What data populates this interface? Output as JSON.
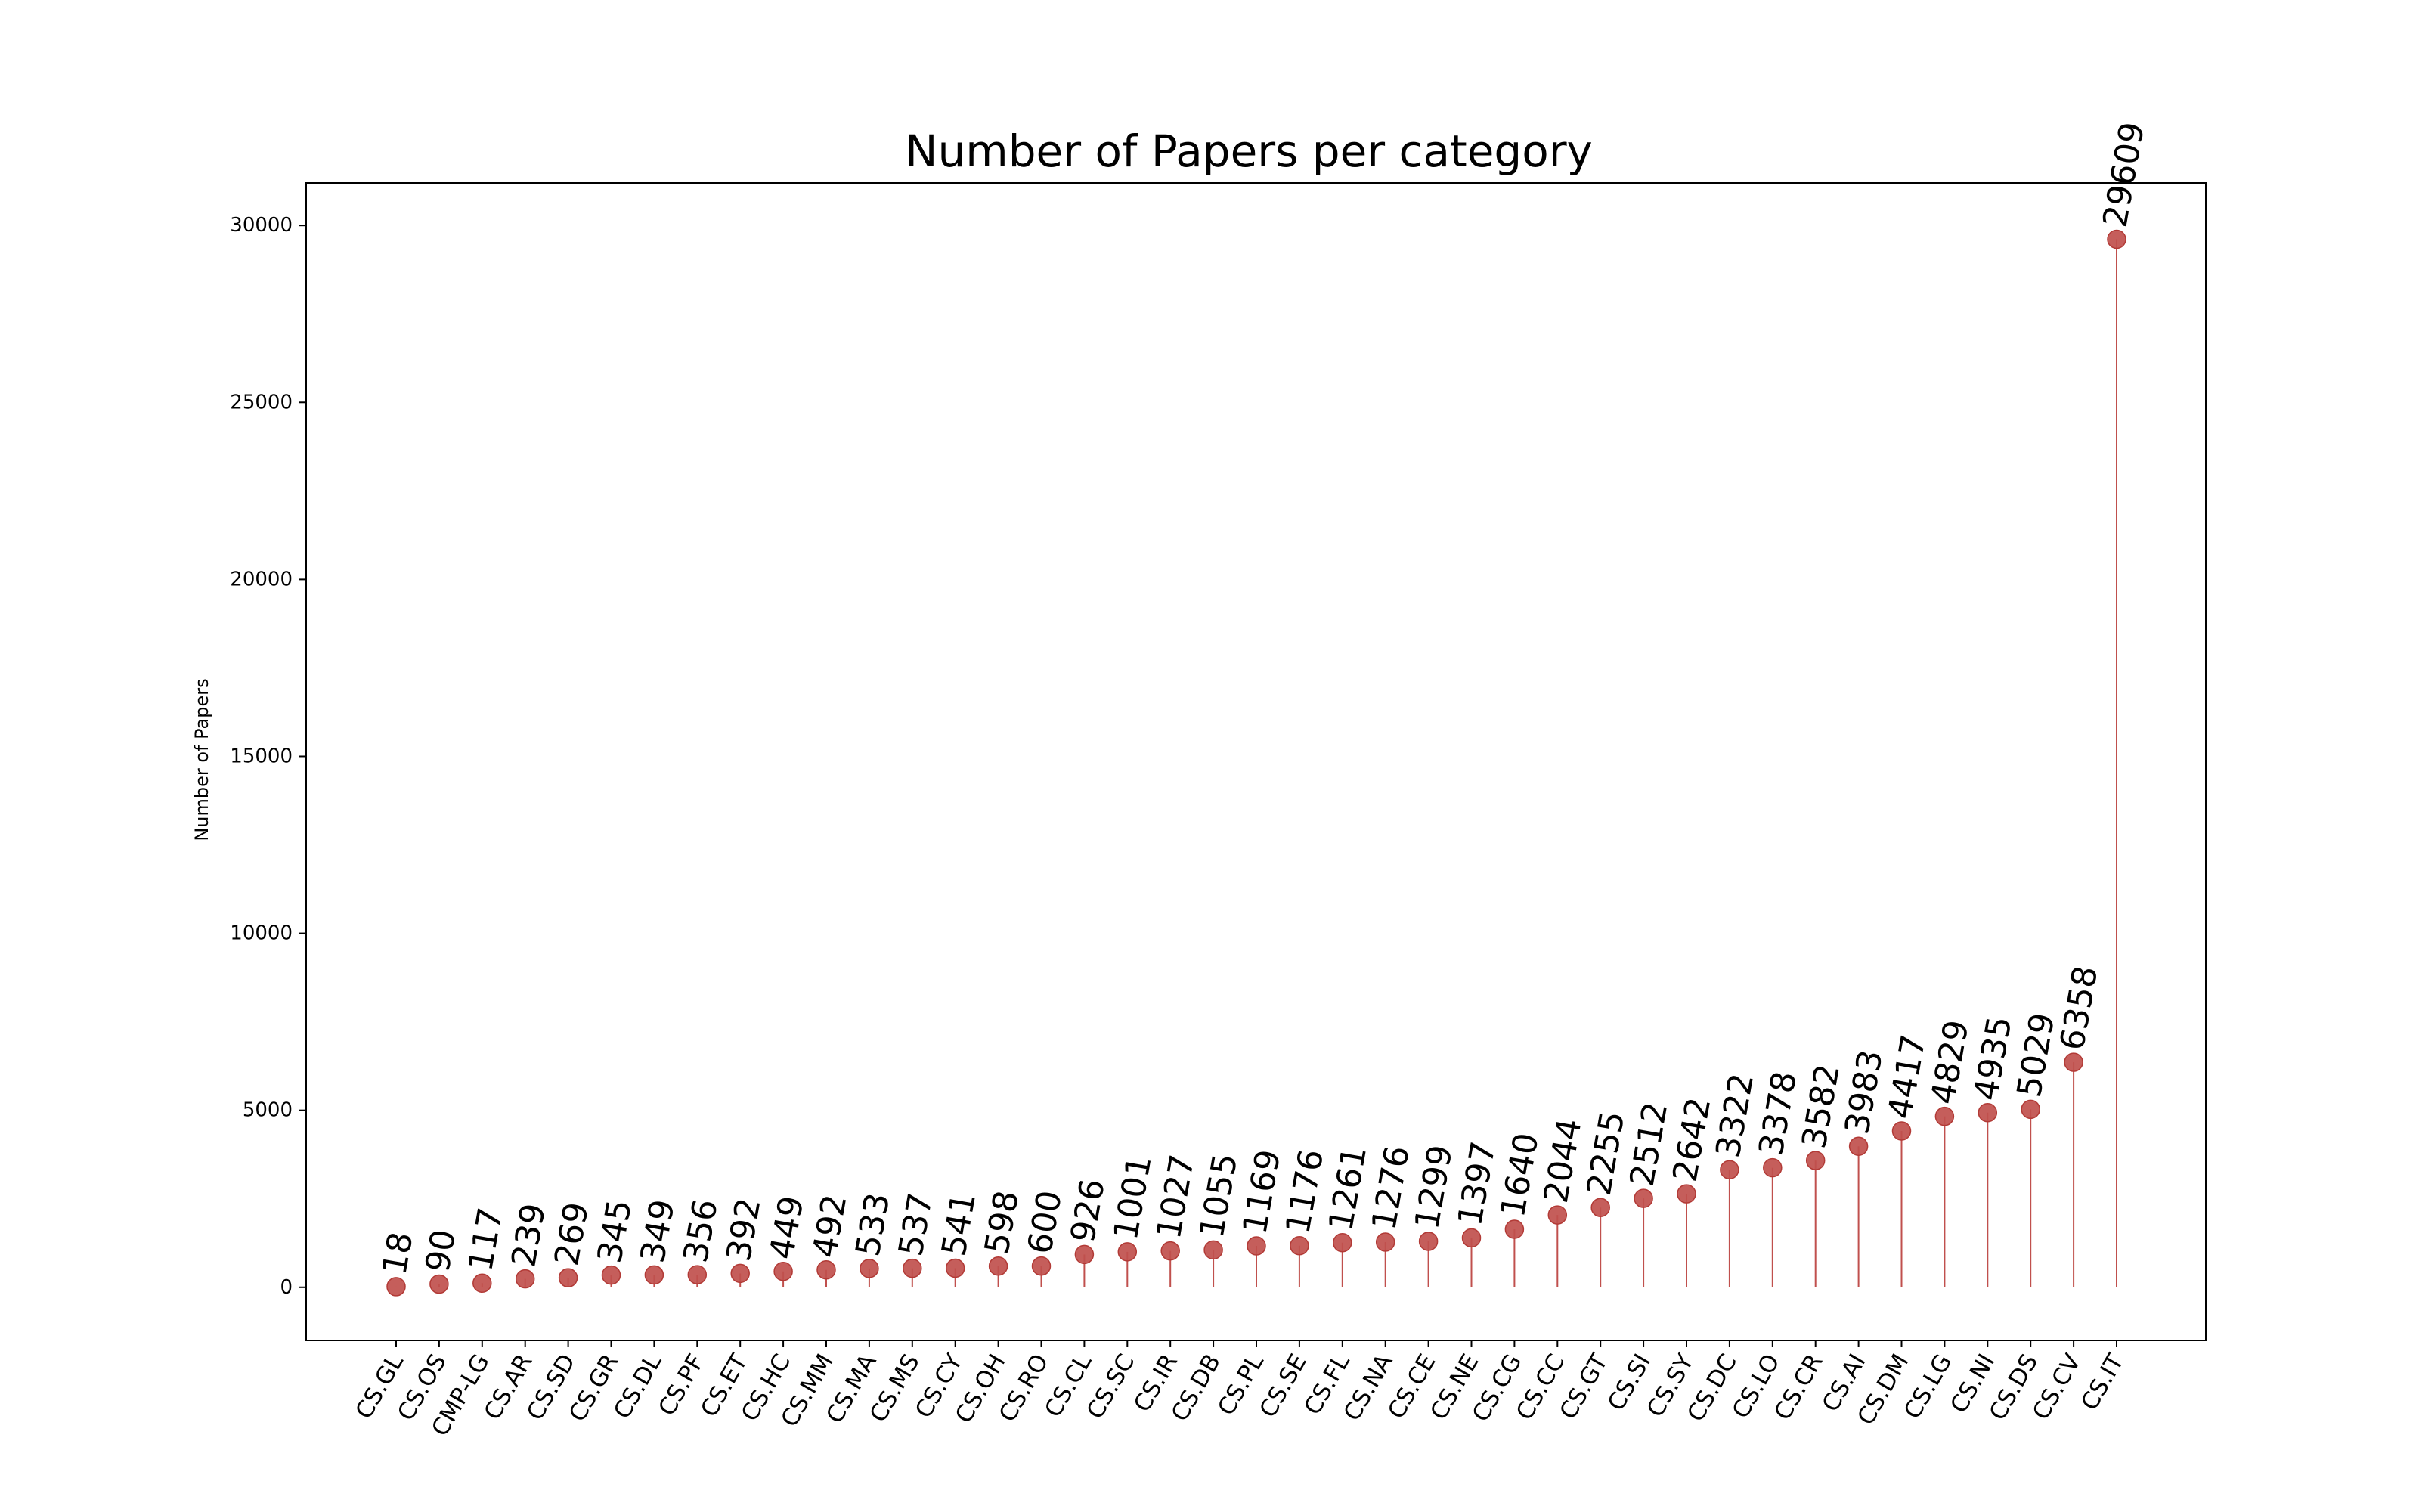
{
  "chart_data": {
    "type": "lollipop",
    "title": "Number of Papers per category",
    "xlabel": "",
    "ylabel": "Number of Papers",
    "ylim": [
      -1500,
      31200
    ],
    "yticks": [
      0,
      5000,
      10000,
      15000,
      20000,
      25000,
      30000
    ],
    "grid": false,
    "color": "#c0504d",
    "categories": [
      "CS.GL",
      "CS.OS",
      "CMP-LG",
      "CS.AR",
      "CS.SD",
      "CS.GR",
      "CS.DL",
      "CS.PF",
      "CS.ET",
      "CS.HC",
      "CS.MM",
      "CS.MA",
      "CS.MS",
      "CS.CY",
      "CS.OH",
      "CS.RO",
      "CS.CL",
      "CS.SC",
      "CS.IR",
      "CS.DB",
      "CS.PL",
      "CS.SE",
      "CS.FL",
      "CS.NA",
      "CS.CE",
      "CS.NE",
      "CS.CG",
      "CS.CC",
      "CS.GT",
      "CS.SI",
      "CS.SY",
      "CS.DC",
      "CS.LO",
      "CS.CR",
      "CS.AI",
      "CS.DM",
      "CS.LG",
      "CS.NI",
      "CS.DS",
      "CS.CV",
      "CS.IT"
    ],
    "values": [
      18,
      90,
      117,
      239,
      269,
      345,
      349,
      356,
      392,
      449,
      492,
      533,
      537,
      541,
      598,
      600,
      926,
      1001,
      1027,
      1055,
      1169,
      1176,
      1261,
      1276,
      1299,
      1397,
      1640,
      2044,
      2255,
      2512,
      2642,
      3322,
      3378,
      3582,
      3983,
      4417,
      4829,
      4935,
      5029,
      6358,
      29609
    ]
  }
}
